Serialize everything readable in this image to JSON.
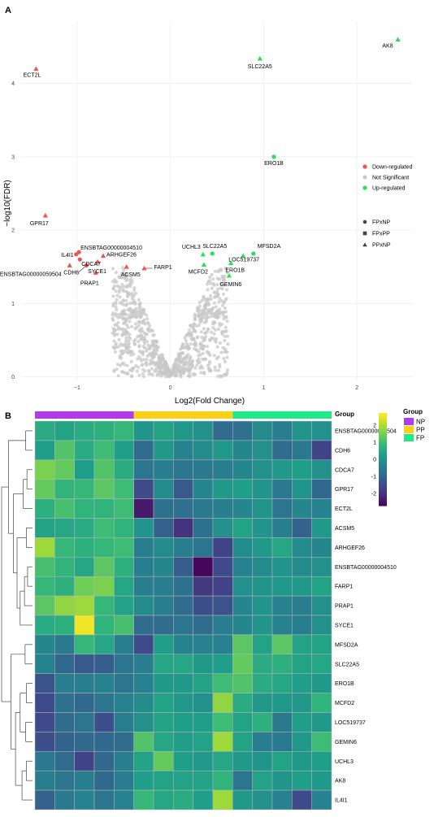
{
  "colors": {
    "down": "#ef5350",
    "ns": "#c8c8c8",
    "up": "#27e055",
    "grid": "#ececec",
    "group_np": "#b13be8",
    "group_pp": "#fbd116",
    "group_fp": "#21e888"
  },
  "chart_data": [
    {
      "panel": "A",
      "type": "scatter",
      "title": "",
      "xlabel": "Log2(Fold Change)",
      "ylabel": "−log10(FDR)",
      "xlim": [
        -1.6,
        2.6
      ],
      "ylim": [
        -0.05,
        4.85
      ],
      "x_ticks": [
        -1,
        0,
        1,
        2
      ],
      "x_tick_labels": [
        "−1",
        "0",
        "1",
        "2"
      ],
      "y_ticks": [
        0,
        1,
        2,
        3,
        4
      ],
      "y_tick_labels": [
        "0",
        "1",
        "2",
        "3",
        "4"
      ],
      "grid": true,
      "legend_color": [
        {
          "key": "down",
          "label": "Down-regulated"
        },
        {
          "key": "ns",
          "label": "Not Significant"
        },
        {
          "key": "up",
          "label": "Up-regulated"
        }
      ],
      "legend_shape": [
        {
          "shape": "circle",
          "label": "FPxNP"
        },
        {
          "shape": "square",
          "label": "FPxPP"
        },
        {
          "shape": "triangle",
          "label": "PPxNP"
        }
      ],
      "labeled_points": [
        {
          "gene": "AK8",
          "x": 2.44,
          "y": 4.6,
          "reg": "up",
          "shape": "triangle"
        },
        {
          "gene": "SLC22A5",
          "x": 0.96,
          "y": 4.34,
          "reg": "up",
          "shape": "triangle"
        },
        {
          "gene": "ECT2L",
          "x": -1.44,
          "y": 4.2,
          "reg": "down",
          "shape": "triangle"
        },
        {
          "gene": "ERO1B",
          "x": 1.11,
          "y": 3.0,
          "reg": "up",
          "shape": "circle"
        },
        {
          "gene": "GPR17",
          "x": -1.34,
          "y": 2.2,
          "reg": "down",
          "shape": "triangle"
        },
        {
          "gene": "ENSBTAG00000004510",
          "x": -0.98,
          "y": 1.7,
          "reg": "down",
          "shape": "circle"
        },
        {
          "gene": "IL4I1",
          "x": -1.01,
          "y": 1.67,
          "reg": "down",
          "shape": "circle"
        },
        {
          "gene": "CDCA7",
          "x": -0.97,
          "y": 1.6,
          "reg": "down",
          "shape": "circle"
        },
        {
          "gene": "CDH6",
          "x": -0.9,
          "y": 1.52,
          "reg": "down",
          "shape": "circle"
        },
        {
          "gene": "ENSBTAG00000059504",
          "x": -1.08,
          "y": 1.52,
          "reg": "down",
          "shape": "triangle"
        },
        {
          "gene": "ARHGEF26",
          "x": -0.72,
          "y": 1.65,
          "reg": "down",
          "shape": "triangle"
        },
        {
          "gene": "SYCE1",
          "x": -0.78,
          "y": 1.57,
          "reg": "down",
          "shape": "triangle"
        },
        {
          "gene": "PRAP1",
          "x": -0.8,
          "y": 1.42,
          "reg": "down",
          "shape": "triangle"
        },
        {
          "gene": "ACSM5",
          "x": -0.47,
          "y": 1.5,
          "reg": "down",
          "shape": "triangle"
        },
        {
          "gene": "FARP1",
          "x": -0.28,
          "y": 1.48,
          "reg": "down",
          "shape": "triangle"
        },
        {
          "gene": "UCHL3",
          "x": 0.35,
          "y": 1.67,
          "reg": "up",
          "shape": "triangle"
        },
        {
          "gene": "SLC22A5",
          "x": 0.45,
          "y": 1.68,
          "reg": "up",
          "shape": "circle"
        },
        {
          "gene": "MFSD2A",
          "x": 0.89,
          "y": 1.68,
          "reg": "up",
          "shape": "circle"
        },
        {
          "gene": "MCFD2",
          "x": 0.36,
          "y": 1.53,
          "reg": "up",
          "shape": "triangle"
        },
        {
          "gene": "LOC519737",
          "x": 0.78,
          "y": 1.65,
          "reg": "up",
          "shape": "triangle"
        },
        {
          "gene": "ERO1B",
          "x": 0.65,
          "y": 1.55,
          "reg": "up",
          "shape": "triangle"
        },
        {
          "gene": "GEMIN6",
          "x": 0.63,
          "y": 1.38,
          "reg": "up",
          "shape": "triangle"
        }
      ]
    },
    {
      "panel": "B",
      "type": "heatmap",
      "legend_title": "Group",
      "group_bar_title": "Group",
      "groups": [
        {
          "label": "NP",
          "key": "group_np",
          "count": 5
        },
        {
          "label": "PP",
          "key": "group_pp",
          "count": 5
        },
        {
          "label": "FP",
          "key": "group_fp",
          "count": 5
        }
      ],
      "color_scale": {
        "min": -2.7,
        "max": 2.7,
        "ticks": [
          2,
          1,
          0,
          -1,
          -2
        ],
        "tick_labels": [
          "2",
          "1",
          "0",
          "-1",
          "-2"
        ]
      },
      "rows": [
        "ENSBTAG00000059504",
        "CDH6",
        "CDCA7",
        "GPR17",
        "ECT2L",
        "ACSM5",
        "ARHGEF26",
        "ENSBTAG00000004510",
        "FARP1",
        "PRAP1",
        "SYCE1",
        "MFSD2A",
        "SLC22A5",
        "ERO1B",
        "MCFD2",
        "LOC519737",
        "GEMIN6",
        "UCHL3",
        "AK8",
        "IL4I1"
      ],
      "values": [
        [
          0.6,
          0.4,
          0.6,
          0.7,
          0.9,
          0.1,
          0.4,
          0.2,
          0.0,
          -0.8,
          -0.7,
          -0.1,
          -0.4,
          0.1,
          0.0
        ],
        [
          0.3,
          1.2,
          0.6,
          1.0,
          0.3,
          -0.8,
          0.2,
          -0.3,
          -0.1,
          0.2,
          -0.2,
          0.0,
          -0.8,
          -0.5,
          -1.6
        ],
        [
          1.6,
          1.4,
          0.3,
          1.2,
          0.6,
          -0.6,
          -0.4,
          -0.6,
          -0.5,
          -0.4,
          -0.2,
          0.0,
          0.2,
          0.3,
          0.0
        ],
        [
          1.4,
          0.8,
          0.9,
          1.3,
          1.0,
          -1.5,
          -0.1,
          -1.2,
          -0.2,
          0.2,
          0.3,
          0.1,
          -0.5,
          0.1,
          -0.9
        ],
        [
          0.7,
          1.1,
          0.8,
          0.8,
          1.0,
          -2.3,
          -0.7,
          -0.7,
          -0.5,
          -0.4,
          -0.2,
          0.1,
          -0.6,
          -0.2,
          -0.3
        ],
        [
          0.4,
          0.5,
          0.6,
          1.0,
          0.8,
          0.1,
          -1.0,
          -1.9,
          -0.7,
          0.0,
          0.4,
          0.1,
          -0.4,
          -1.0,
          0.2
        ],
        [
          1.9,
          0.9,
          0.7,
          0.9,
          1.0,
          -0.4,
          -0.1,
          -0.4,
          -0.6,
          -1.6,
          -0.1,
          0.2,
          0.5,
          -0.1,
          -0.2
        ],
        [
          1.1,
          0.8,
          0.5,
          1.3,
          0.7,
          -0.4,
          -0.2,
          -1.1,
          -2.6,
          -1.5,
          -0.3,
          -0.1,
          0.1,
          -0.1,
          0.0
        ],
        [
          0.9,
          0.7,
          1.5,
          1.6,
          0.5,
          -0.4,
          -0.4,
          -0.7,
          -1.8,
          -1.6,
          0.0,
          0.1,
          0.2,
          0.2,
          0.4
        ],
        [
          1.3,
          1.8,
          1.9,
          0.9,
          0.4,
          -0.1,
          -0.4,
          -0.8,
          -1.4,
          -1.3,
          -0.2,
          0.1,
          -0.3,
          -0.4,
          0.0
        ],
        [
          0.6,
          0.7,
          2.6,
          0.8,
          1.1,
          -0.8,
          -0.8,
          -0.6,
          -0.8,
          -0.4,
          -0.2,
          0.1,
          -0.3,
          -0.4,
          0.0
        ],
        [
          -0.2,
          -0.5,
          0.9,
          0.5,
          -0.4,
          -1.5,
          0.3,
          -0.3,
          -0.3,
          -0.3,
          1.3,
          0.4,
          1.3,
          0.4,
          0.4
        ],
        [
          -0.3,
          -0.9,
          -1.2,
          -1.1,
          -0.6,
          -0.4,
          0.5,
          0.5,
          0.2,
          0.3,
          1.4,
          0.6,
          0.7,
          0.4,
          0.5
        ],
        [
          -1.3,
          -0.4,
          -0.4,
          -0.3,
          -0.6,
          -0.3,
          0.2,
          0.2,
          0.4,
          1.0,
          1.2,
          0.6,
          0.5,
          0.3,
          0.2
        ],
        [
          -1.5,
          -0.7,
          -0.9,
          -0.6,
          -0.3,
          -0.1,
          0.4,
          0.2,
          0.0,
          1.8,
          0.6,
          0.2,
          0.2,
          0.2,
          0.8
        ],
        [
          -1.5,
          -0.8,
          -0.6,
          -1.4,
          -0.4,
          0.0,
          0.4,
          0.3,
          0.3,
          1.0,
          0.4,
          0.7,
          -0.5,
          0.3,
          0.2
        ],
        [
          -1.4,
          -1.0,
          -0.9,
          -0.9,
          -0.8,
          1.2,
          0.5,
          0.3,
          0.4,
          1.9,
          0.4,
          -0.4,
          -0.5,
          0.2,
          1.0
        ],
        [
          -0.5,
          -0.8,
          -1.6,
          -0.9,
          -0.4,
          0.4,
          1.4,
          0.3,
          0.2,
          0.5,
          0.2,
          0.1,
          0.4,
          0.2,
          0.3
        ],
        [
          -0.4,
          -0.6,
          -0.4,
          -0.9,
          -0.4,
          0.3,
          0.4,
          0.4,
          0.4,
          0.8,
          -0.6,
          0.4,
          0.1,
          0.3,
          0.2
        ],
        [
          -1.0,
          -0.5,
          -0.3,
          -0.6,
          -0.3,
          0.9,
          0.5,
          0.6,
          0.3,
          1.9,
          0.2,
          0.0,
          -0.3,
          -1.5,
          -0.3
        ]
      ]
    }
  ],
  "panel_labels": {
    "a": "A",
    "b": "B"
  }
}
